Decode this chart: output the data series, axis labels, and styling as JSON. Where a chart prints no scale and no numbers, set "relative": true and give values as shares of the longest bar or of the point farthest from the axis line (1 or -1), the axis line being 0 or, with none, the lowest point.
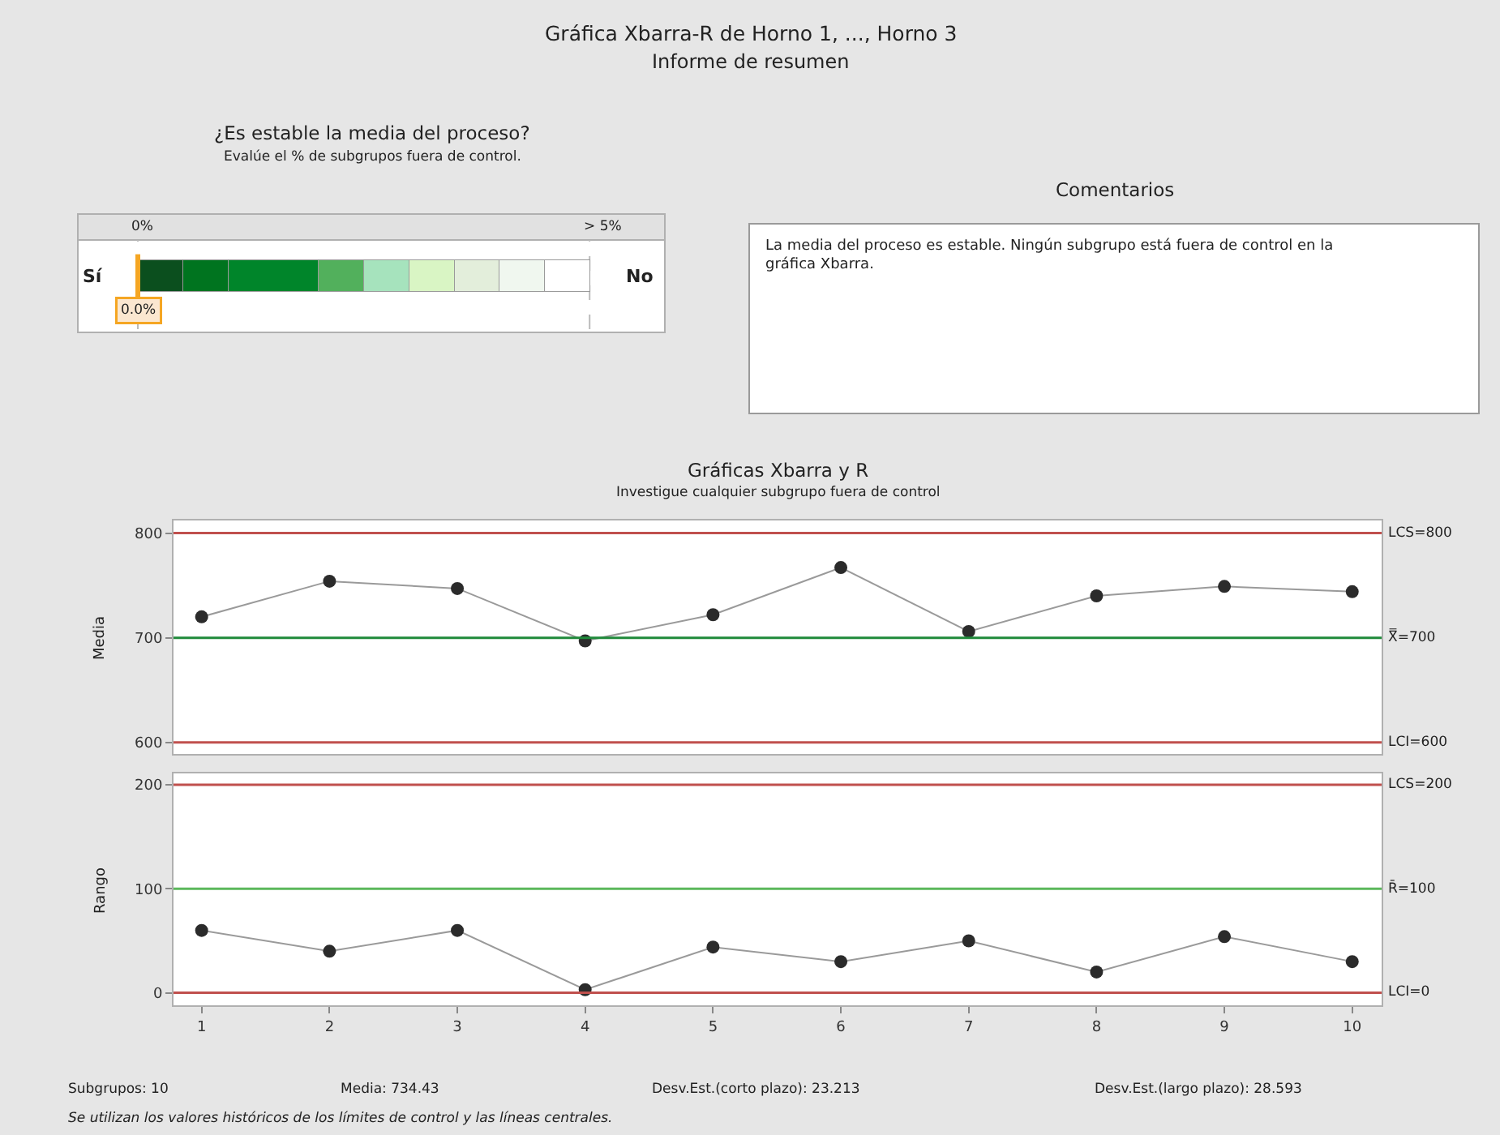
{
  "chart_data": [
    {
      "type": "other",
      "title": "Gráfica Xbarra-R de Horno 1, ..., Horno 3",
      "subtitle": "Informe de resumen"
    },
    {
      "type": "bar",
      "orientation": "horizontal",
      "stacked": true,
      "title": "¿Es estable la media del proceso?",
      "subtitle": "Evalúe el % de subgrupos fuera de control.",
      "categories": [
        null
      ],
      "relative": true,
      "series": [
        {
          "color": "#0b4f1e",
          "values": [
            0.1
          ]
        },
        {
          "color": "#00741f",
          "values": [
            0.1
          ]
        },
        {
          "color": "#00852a",
          "values": [
            0.2
          ]
        },
        {
          "color": "#52b05c",
          "values": [
            0.1
          ]
        },
        {
          "color": "#a6e3bd",
          "values": [
            0.1
          ]
        },
        {
          "color": "#d9f5c4",
          "values": [
            0.1
          ]
        },
        {
          "color": "#e3eedb",
          "values": [
            0.1
          ]
        },
        {
          "color": "#f0f7ef",
          "values": [
            0.1
          ]
        },
        {
          "color": "#ffffff",
          "values": [
            0.1
          ]
        }
      ],
      "ref_lines": [
        {
          "axis": "x",
          "value": 0,
          "label": "0%",
          "color": "#bbbbbb",
          "line_style": "dashed"
        },
        {
          "axis": "x",
          "value": 1,
          "color": "#bbbbbb",
          "line_style": "dashed"
        },
        {
          "axis": "x",
          "value": 0,
          "label": "0.0%",
          "color": "#f5a623"
        }
      ],
      "annotations": [
        "Sí",
        "No",
        "> 5%"
      ]
    },
    {
      "type": "other",
      "title": "Comentarios",
      "annotations": [
        "La media del proceso es estable. Ningún subgrupo está fuera de control en la gráfica Xbarra."
      ]
    },
    {
      "type": "line",
      "title": "Gráficas Xbarra y R",
      "subtitle": "Investigue cualquier subgrupo fuera de control",
      "ylabel": "Media",
      "x": [
        1,
        2,
        3,
        4,
        5,
        6,
        7,
        8,
        9,
        10
      ],
      "xlim": [
        0.78,
        10.23
      ],
      "xticks": [
        1,
        2,
        3,
        4,
        5,
        6,
        7,
        8,
        9,
        10
      ],
      "ylim": [
        589,
        812
      ],
      "yticks": [
        600,
        700,
        800
      ],
      "tick_labels": "y",
      "marker": "circle",
      "line_style": "solid",
      "series": [
        {
          "color": "#2b2b2b",
          "values": [
            720,
            754,
            747,
            697,
            722,
            767,
            706,
            740,
            749,
            744
          ]
        }
      ],
      "ref_lines": [
        {
          "axis": "y",
          "value": 800,
          "label": "LCS=800",
          "color": "#c0504d"
        },
        {
          "axis": "y",
          "value": 700,
          "label": "X̿=700",
          "color": "#1f8a3a"
        },
        {
          "axis": "y",
          "value": 600,
          "label": "LCI=600",
          "color": "#c0504d"
        }
      ]
    },
    {
      "type": "line",
      "ylabel": "Rango",
      "x": [
        1,
        2,
        3,
        4,
        5,
        6,
        7,
        8,
        9,
        10
      ],
      "xlim": [
        0.78,
        10.23
      ],
      "xticks": [
        1,
        2,
        3,
        4,
        5,
        6,
        7,
        8,
        9,
        10
      ],
      "ylim": [
        -12,
        211
      ],
      "yticks": [
        0,
        100,
        200
      ],
      "marker": "circle",
      "line_style": "solid",
      "series": [
        {
          "color": "#2b2b2b",
          "values": [
            60,
            40,
            60,
            3,
            44,
            30,
            50,
            20,
            54,
            30
          ]
        }
      ],
      "ref_lines": [
        {
          "axis": "y",
          "value": 200,
          "label": "LCS=200",
          "color": "#c0504d"
        },
        {
          "axis": "y",
          "value": 100,
          "label": "R̄=100",
          "color": "#5cb85c"
        },
        {
          "axis": "y",
          "value": 0,
          "label": "LCI=0",
          "color": "#c0504d"
        }
      ],
      "annotations": [
        "Subgrupos: 10",
        "Media: 734.43",
        "Desv.Est.(corto plazo): 23.213",
        "Desv.Est.(largo plazo): 28.593",
        "Se utilizan los valores históricos de los límites de control y las líneas centrales."
      ]
    }
  ]
}
